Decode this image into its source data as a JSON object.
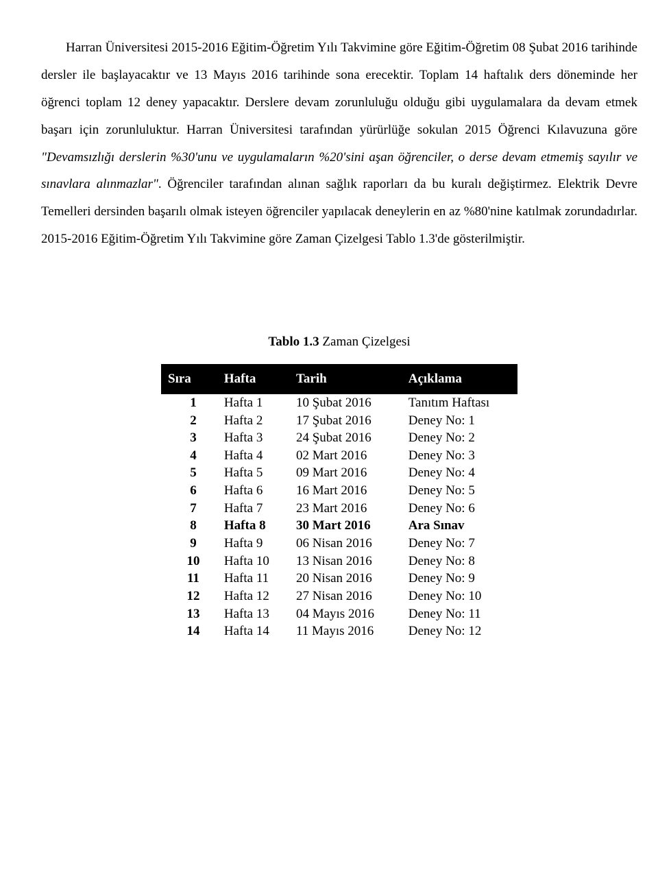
{
  "doc": {
    "p1_seg1": "Harran Üniversitesi 2015-2016 Eğitim-Öğretim Yılı Takvimine göre Eğitim-Öğretim 08 Şubat 2016 tarihinde dersler ile başlayacaktır ve 13 Mayıs 2016 tarihinde sona erecektir. Toplam 14 haftalık ders döneminde her öğrenci  toplam 12 deney yapacaktır. Derslere devam zorunluluğu olduğu gibi uygulamalara da devam etmek başarı için zorunluluktur. Harran Üniversitesi tarafından yürürlüğe sokulan 2015 Öğrenci Kılavuzuna göre ",
    "p1_italic": "\"Devamsızlığı derslerin %30'unu ve uygulamaların %20'sini aşan    öğrenciler, o derse devam etmemiş sayılır ve sınavlara alınmazlar\"",
    "p1_seg2": ". Öğrenciler tarafından alınan sağlık raporları da bu kuralı değiştirmez. Elektrik Devre Temelleri dersinden başarılı olmak isteyen öğrenciler yapılacak deneylerin en az %80'nine katılmak zorundadırlar.  2015-2016 Eğitim-Öğretim Yılı Takvimine göre Zaman Çizelgesi Tablo 1.3'de gösterilmiştir."
  },
  "table": {
    "caption_bold": "Tablo 1.3",
    "caption_rest": " Zaman Çizelgesi",
    "columns": [
      "Sıra",
      "Hafta",
      "Tarih",
      "Açıklama"
    ],
    "rows": [
      {
        "sira": "1",
        "hafta": "Hafta 1",
        "tarih": "10 Şubat 2016",
        "aciklama": "Tanıtım Haftası",
        "bold": false
      },
      {
        "sira": "2",
        "hafta": "Hafta 2",
        "tarih": "17 Şubat 2016",
        "aciklama": "Deney No: 1",
        "bold": false
      },
      {
        "sira": "3",
        "hafta": "Hafta 3",
        "tarih": "24 Şubat 2016",
        "aciklama": "Deney No: 2",
        "bold": false
      },
      {
        "sira": "4",
        "hafta": "Hafta 4",
        "tarih": "02 Mart 2016",
        "aciklama": "Deney No: 3",
        "bold": false
      },
      {
        "sira": "5",
        "hafta": "Hafta 5",
        "tarih": "09 Mart 2016",
        "aciklama": "Deney No: 4",
        "bold": false
      },
      {
        "sira": "6",
        "hafta": "Hafta 6",
        "tarih": "16 Mart 2016",
        "aciklama": "Deney No: 5",
        "bold": false
      },
      {
        "sira": "7",
        "hafta": "Hafta 7",
        "tarih": "23 Mart 2016",
        "aciklama": "Deney No: 6",
        "bold": false
      },
      {
        "sira": "8",
        "hafta": "Hafta 8",
        "tarih": "30 Mart 2016",
        "aciklama": "Ara Sınav",
        "bold": true
      },
      {
        "sira": "9",
        "hafta": "Hafta 9",
        "tarih": "06 Nisan 2016",
        "aciklama": "Deney No: 7",
        "bold": false
      },
      {
        "sira": "10",
        "hafta": "Hafta 10",
        "tarih": "13 Nisan 2016",
        "aciklama": "Deney No: 8",
        "bold": false
      },
      {
        "sira": "11",
        "hafta": "Hafta 11",
        "tarih": "20 Nisan 2016",
        "aciklama": "Deney No: 9",
        "bold": false
      },
      {
        "sira": "12",
        "hafta": "Hafta 12",
        "tarih": "27 Nisan 2016",
        "aciklama": "Deney No: 10",
        "bold": false
      },
      {
        "sira": "13",
        "hafta": "Hafta 13",
        "tarih": "04 Mayıs 2016",
        "aciklama": "Deney No: 11",
        "bold": false
      },
      {
        "sira": "14",
        "hafta": "Hafta 14",
        "tarih": "11 Mayıs 2016",
        "aciklama": "Deney No: 12",
        "bold": false
      }
    ]
  }
}
